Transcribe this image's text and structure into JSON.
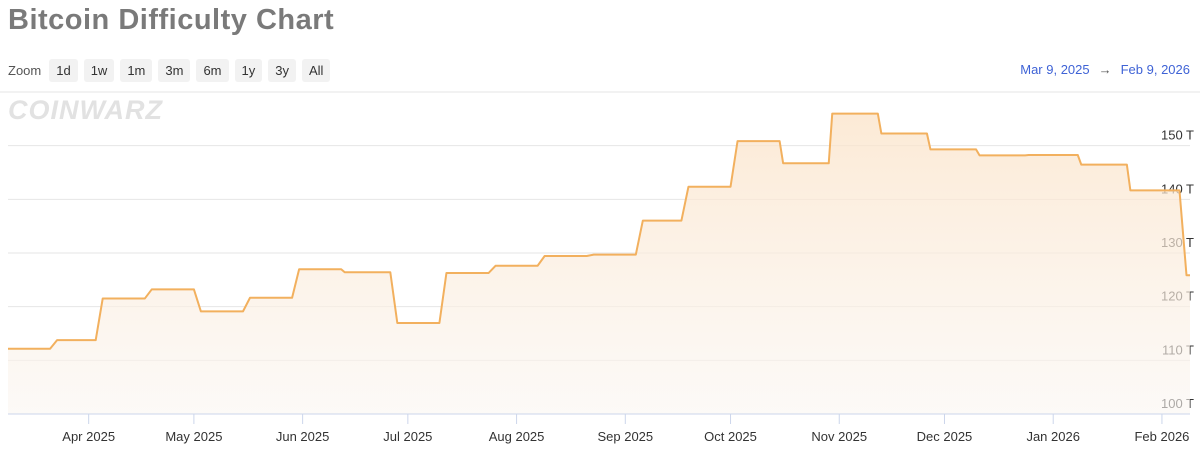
{
  "chart_data": {
    "type": "line",
    "title": "Bitcoin Difficulty Chart",
    "x": [
      "2025-03-09",
      "2025-03-21",
      "2025-03-23",
      "2025-04-03",
      "2025-04-05",
      "2025-04-17",
      "2025-04-19",
      "2025-05-01",
      "2025-05-03",
      "2025-05-15",
      "2025-05-17",
      "2025-05-29",
      "2025-05-31",
      "2025-06-12",
      "2025-06-13",
      "2025-06-26",
      "2025-06-28",
      "2025-07-10",
      "2025-07-12",
      "2025-07-24",
      "2025-07-26",
      "2025-08-07",
      "2025-08-09",
      "2025-08-21",
      "2025-08-23",
      "2025-09-04",
      "2025-09-06",
      "2025-09-17",
      "2025-09-19",
      "2025-10-01",
      "2025-10-03",
      "2025-10-15",
      "2025-10-16",
      "2025-10-29",
      "2025-10-30",
      "2025-11-12",
      "2025-11-13",
      "2025-11-26",
      "2025-11-27",
      "2025-12-10",
      "2025-12-11",
      "2025-12-24",
      "2025-12-25",
      "2026-01-08",
      "2026-01-09",
      "2026-01-22",
      "2026-01-23",
      "2026-02-06",
      "2026-02-08",
      "2026-02-09"
    ],
    "series": [
      {
        "name": "Difficulty",
        "color": "#f2b05e",
        "values": [
          112.15,
          112.15,
          113.76,
          113.76,
          121.51,
          121.51,
          123.23,
          123.23,
          119.12,
          119.12,
          121.66,
          121.66,
          126.98,
          126.98,
          126.41,
          126.41,
          116.96,
          116.96,
          126.27,
          126.27,
          127.62,
          127.62,
          129.44,
          129.44,
          129.7,
          129.7,
          136.04,
          136.04,
          142.34,
          142.34,
          150.84,
          150.84,
          146.72,
          146.72,
          155.97,
          155.97,
          152.27,
          152.27,
          149.3,
          149.3,
          148.2,
          148.2,
          148.26,
          148.26,
          146.47,
          146.47,
          141.67,
          141.67,
          125.86,
          125.86
        ]
      }
    ],
    "xlim": [
      "2025-03-09",
      "2026-02-09"
    ],
    "xticks": [
      {
        "value": "2025-04-01",
        "label": "Apr 2025"
      },
      {
        "value": "2025-05-01",
        "label": "May 2025"
      },
      {
        "value": "2025-06-01",
        "label": "Jun 2025"
      },
      {
        "value": "2025-07-01",
        "label": "Jul 2025"
      },
      {
        "value": "2025-08-01",
        "label": "Aug 2025"
      },
      {
        "value": "2025-09-01",
        "label": "Sep 2025"
      },
      {
        "value": "2025-10-01",
        "label": "Oct 2025"
      },
      {
        "value": "2025-11-01",
        "label": "Nov 2025"
      },
      {
        "value": "2025-12-01",
        "label": "Dec 2025"
      },
      {
        "value": "2026-01-01",
        "label": "Jan 2026"
      },
      {
        "value": "2026-02-01",
        "label": "Feb 2026"
      }
    ],
    "ylim": [
      100,
      160
    ],
    "yticks": [
      {
        "value": 100,
        "label": "100 T"
      },
      {
        "value": 110,
        "label": "110 T"
      },
      {
        "value": 120,
        "label": "120 T"
      },
      {
        "value": 130,
        "label": "130 T"
      },
      {
        "value": 140,
        "label": "140 T"
      },
      {
        "value": 150,
        "label": "150 T"
      }
    ],
    "grid": true
  },
  "zoom": {
    "label": "Zoom",
    "buttons": [
      "1d",
      "1w",
      "1m",
      "3m",
      "6m",
      "1y",
      "3y",
      "All"
    ]
  },
  "range": {
    "from": "Mar 9, 2025",
    "separator": "→",
    "to": "Feb 9, 2026"
  },
  "watermark": "COINWARZ"
}
